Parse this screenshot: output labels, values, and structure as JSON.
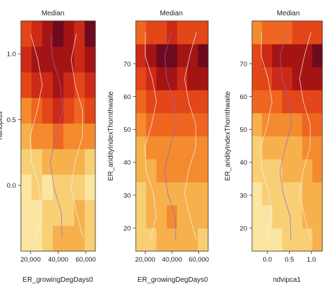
{
  "chart_data": [
    {
      "type": "heatmap",
      "title": "Median",
      "xlabel": "ER_growingDegDays0",
      "ylabel": "",
      "ylabel_cropped": "nanoplus",
      "xlim": [
        13000,
        67000
      ],
      "ylim": [
        -0.5,
        1.25
      ],
      "xticks": [
        20000,
        40000,
        60000
      ],
      "xtick_labels": [
        "20,000",
        "40,000",
        "60,000"
      ],
      "yticks": [
        0.0,
        0.5,
        1.0
      ],
      "ytick_labels": [
        "0.0",
        "0.5",
        "1.0"
      ],
      "grid": false,
      "legend": "none",
      "rows": 9,
      "cols": 7,
      "values": [
        [
          1,
          1,
          2,
          3,
          3,
          3,
          2
        ],
        [
          1,
          1,
          2,
          2,
          2,
          3,
          2
        ],
        [
          1,
          2,
          1,
          2,
          2,
          2,
          1
        ],
        [
          2,
          2,
          3,
          3,
          3,
          3,
          2
        ],
        [
          3,
          4,
          4,
          5,
          4,
          4,
          4
        ],
        [
          4,
          5,
          6,
          7,
          6,
          5,
          6
        ],
        [
          6,
          7,
          7,
          8,
          7,
          6,
          7
        ],
        [
          7,
          8,
          8,
          8,
          8,
          7,
          8
        ],
        [
          6,
          7,
          8,
          9,
          8,
          7,
          9
        ]
      ]
    },
    {
      "type": "heatmap",
      "title": "Median",
      "xlabel": "ER_growingDegDays0",
      "ylabel": "ER_aridityIndexThornthwaite",
      "xlim": [
        13000,
        67000
      ],
      "ylim": [
        13,
        83
      ],
      "xticks": [
        20000,
        40000,
        60000
      ],
      "xtick_labels": [
        "20,000",
        "40,000",
        "60,000"
      ],
      "yticks": [
        20,
        30,
        40,
        50,
        60,
        70
      ],
      "ytick_labels": [
        "20",
        "30",
        "40",
        "50",
        "60",
        "70"
      ],
      "grid": false,
      "legend": "none",
      "rows": 10,
      "cols": 7,
      "values": [
        [
          2,
          2,
          3,
          3,
          3,
          3,
          2
        ],
        [
          2,
          3,
          3,
          4,
          3,
          3,
          3
        ],
        [
          2,
          3,
          3,
          3,
          3,
          3,
          3
        ],
        [
          3,
          3,
          4,
          4,
          4,
          4,
          4
        ],
        [
          3,
          4,
          4,
          4,
          4,
          4,
          4
        ],
        [
          4,
          5,
          5,
          5,
          5,
          5,
          5
        ],
        [
          5,
          6,
          6,
          6,
          6,
          6,
          6
        ],
        [
          6,
          7,
          8,
          8,
          7,
          8,
          8
        ],
        [
          7,
          8,
          9,
          9,
          8,
          8,
          9
        ],
        [
          5,
          6,
          6,
          7,
          6,
          6,
          6
        ]
      ]
    },
    {
      "type": "heatmap",
      "title": "Median",
      "xlabel": "ndvipca1",
      "ylabel": "ER_aridityIndexThornthwaite",
      "xlim": [
        -0.35,
        1.25
      ],
      "ylim": [
        13,
        83
      ],
      "xticks": [
        0.0,
        0.5,
        1.0
      ],
      "xtick_labels": [
        "0.0",
        "0.5",
        "1.0"
      ],
      "yticks": [
        20,
        30,
        40,
        50,
        60,
        70
      ],
      "ytick_labels": [
        "20",
        "30",
        "40",
        "50",
        "60",
        "70"
      ],
      "grid": false,
      "legend": "none",
      "rows": 10,
      "cols": 7,
      "values": [
        [
          1,
          1,
          1,
          2,
          2,
          2,
          3
        ],
        [
          1,
          1,
          2,
          2,
          2,
          3,
          3
        ],
        [
          1,
          2,
          2,
          2,
          2,
          3,
          3
        ],
        [
          2,
          2,
          2,
          3,
          3,
          3,
          4
        ],
        [
          2,
          3,
          3,
          3,
          3,
          4,
          4
        ],
        [
          3,
          4,
          4,
          4,
          4,
          5,
          5
        ],
        [
          5,
          5,
          5,
          6,
          6,
          6,
          6
        ],
        [
          6,
          6,
          7,
          7,
          8,
          8,
          8
        ],
        [
          6,
          7,
          8,
          8,
          8,
          8,
          9
        ],
        [
          4,
          5,
          5,
          5,
          6,
          6,
          6
        ]
      ]
    }
  ],
  "palette": [
    "#fff8c9",
    "#fbe6a1",
    "#f9cf76",
    "#f6b14d",
    "#f48b2e",
    "#ef6620",
    "#e34619",
    "#cc2a17",
    "#a51414",
    "#6e0a1e"
  ],
  "contour_color": "#f2f2f2",
  "contour_accent_color": "#8a64d6"
}
